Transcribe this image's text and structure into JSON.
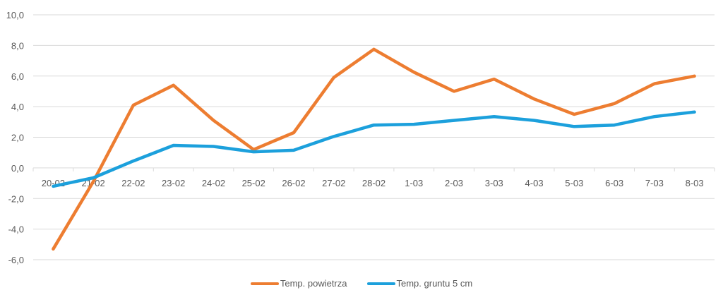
{
  "chart_data": {
    "type": "line",
    "title": "",
    "xlabel": "",
    "ylabel": "",
    "categories": [
      "20-02",
      "21-02",
      "22-02",
      "23-02",
      "24-02",
      "25-02",
      "26-02",
      "27-02",
      "28-02",
      "1-03",
      "2-03",
      "3-03",
      "4-03",
      "5-03",
      "6-03",
      "7-03",
      "8-03"
    ],
    "series": [
      {
        "name": "Temp. powietrza",
        "color": "#ED7D31",
        "values": [
          -5.3,
          -0.9,
          4.1,
          5.4,
          3.1,
          1.2,
          2.3,
          5.9,
          7.75,
          6.25,
          5.0,
          5.8,
          4.5,
          3.5,
          4.2,
          5.5,
          6.0
        ]
      },
      {
        "name": "Temp. gruntu 5 cm",
        "color": "#1CA0DC",
        "values": [
          -1.2,
          -0.65,
          0.45,
          1.47,
          1.4,
          1.05,
          1.15,
          2.05,
          2.8,
          2.85,
          3.1,
          3.35,
          3.1,
          2.7,
          2.8,
          3.35,
          3.65
        ]
      }
    ],
    "ylim": [
      -6,
      10
    ],
    "yticks": [
      10,
      8,
      6,
      4,
      2,
      0,
      -2,
      -4,
      -6
    ],
    "ytick_labels": [
      "10,0",
      "8,0",
      "6,0",
      "4,0",
      "2,0",
      "0,0",
      "-2,0",
      "-4,0",
      "-6,0"
    ],
    "grid": true,
    "legend_position": "bottom"
  },
  "legend": {
    "items": [
      {
        "label": "Temp. powietrza",
        "color": "#ED7D31"
      },
      {
        "label": "Temp. gruntu 5 cm",
        "color": "#1CA0DC"
      }
    ]
  }
}
